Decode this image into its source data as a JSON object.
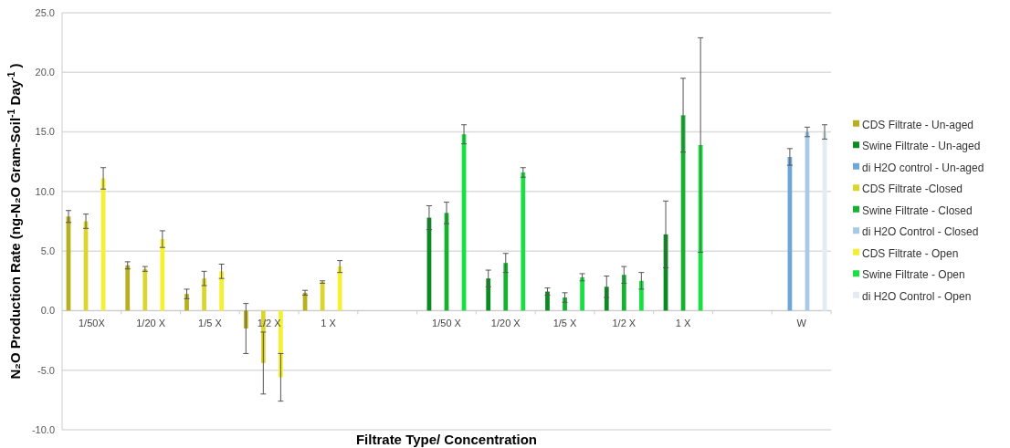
{
  "chart_data": {
    "type": "bar",
    "xlabel": "Filtrate Type/ Concentration",
    "ylabel": "N₂O Production Rate (ng-N₂O Gram-Soil$^{-1}$ Day$^{-1}$ )",
    "categories": [
      "1/50X",
      "1/20 X",
      "1/5 X",
      "1/2 X",
      "1 X",
      null,
      "1/50 X",
      "1/20 X",
      "1/5 X",
      "1/2 X",
      "1 X",
      null,
      "W"
    ],
    "ylim": [
      -10,
      25
    ],
    "yticks": [
      {
        "value": -10,
        "label": "-10.0"
      },
      {
        "value": -5,
        "label": "-5.0"
      },
      {
        "value": 0,
        "label": "0.0"
      },
      {
        "value": 5,
        "label": "5.0"
      },
      {
        "value": 10,
        "label": "10.0"
      },
      {
        "value": 15,
        "label": "15.0"
      },
      {
        "value": 20,
        "label": "20.0"
      },
      {
        "value": 25,
        "label": "25.0"
      }
    ],
    "grid": "y",
    "legend": "right",
    "series": [
      {
        "name": "CDS Filtrate - Un-aged",
        "color": "#b8b020",
        "values": [
          7.9,
          3.8,
          1.4,
          -1.5,
          1.5,
          null,
          null,
          null,
          null,
          null,
          null,
          null,
          null
        ],
        "errors": [
          0.5,
          0.3,
          0.4,
          2.1,
          0.2,
          null,
          null,
          null,
          null,
          null,
          null,
          null,
          null
        ]
      },
      {
        "name": "Swine Filtrate - Un-aged",
        "color": "#0b8a22",
        "values": [
          null,
          null,
          null,
          null,
          null,
          null,
          7.8,
          2.7,
          1.6,
          2.0,
          6.4,
          null,
          null
        ],
        "errors": [
          null,
          null,
          null,
          null,
          null,
          null,
          1.0,
          0.7,
          0.3,
          0.9,
          2.8,
          null,
          null
        ]
      },
      {
        "name": "di H2O control - Un-aged",
        "color": "#6fa6d8",
        "values": [
          null,
          null,
          null,
          null,
          null,
          null,
          null,
          null,
          null,
          null,
          null,
          null,
          12.9
        ],
        "errors": [
          null,
          null,
          null,
          null,
          null,
          null,
          null,
          null,
          null,
          null,
          null,
          null,
          0.7
        ]
      },
      {
        "name": "CDS Filtrate -Closed",
        "color": "#dcd530",
        "values": [
          7.5,
          3.5,
          2.7,
          -4.4,
          2.4,
          null,
          null,
          null,
          null,
          null,
          null,
          null,
          null
        ],
        "errors": [
          0.6,
          0.2,
          0.6,
          2.6,
          0.1,
          null,
          null,
          null,
          null,
          null,
          null,
          null,
          null
        ]
      },
      {
        "name": "Swine Filtrate - Closed",
        "color": "#14b22e",
        "values": [
          null,
          null,
          null,
          null,
          null,
          null,
          8.2,
          4.0,
          1.1,
          3.0,
          16.4,
          null,
          null
        ],
        "errors": [
          null,
          null,
          null,
          null,
          null,
          null,
          0.9,
          0.8,
          0.4,
          0.7,
          3.1,
          null,
          null
        ]
      },
      {
        "name": "di H2O Control - Closed",
        "color": "#a9c9e8",
        "values": [
          null,
          null,
          null,
          null,
          null,
          null,
          null,
          null,
          null,
          null,
          null,
          null,
          15.0
        ],
        "errors": [
          null,
          null,
          null,
          null,
          null,
          null,
          null,
          null,
          null,
          null,
          null,
          null,
          0.4
        ]
      },
      {
        "name": "CDS Filtrate - Open",
        "color": "#f5f032",
        "values": [
          11.1,
          6.0,
          3.3,
          -5.6,
          3.7,
          null,
          null,
          null,
          null,
          null,
          null,
          null,
          null
        ],
        "errors": [
          0.9,
          0.7,
          0.6,
          2.0,
          0.5,
          null,
          null,
          null,
          null,
          null,
          null,
          null,
          null
        ]
      },
      {
        "name": "Swine Filtrate - Open",
        "color": "#17e040",
        "values": [
          null,
          null,
          null,
          null,
          null,
          null,
          14.8,
          11.6,
          2.8,
          2.5,
          13.9,
          null,
          null
        ],
        "errors": [
          null,
          null,
          null,
          null,
          null,
          null,
          0.8,
          0.4,
          0.3,
          0.7,
          9.0,
          null,
          null
        ]
      },
      {
        "name": "di H2O Control - Open",
        "color": "#e3ebf3",
        "values": [
          null,
          null,
          null,
          null,
          null,
          null,
          null,
          null,
          null,
          null,
          null,
          null,
          15.0
        ],
        "errors": [
          null,
          null,
          null,
          null,
          null,
          null,
          null,
          null,
          null,
          null,
          null,
          null,
          0.6
        ]
      }
    ]
  }
}
